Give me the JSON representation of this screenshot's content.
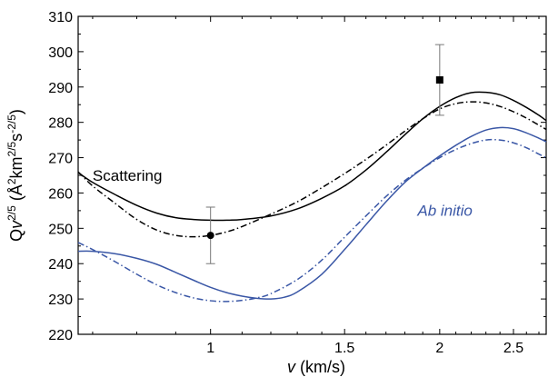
{
  "chart_data": {
    "type": "line",
    "title": "",
    "xlabel": "v (km/s)",
    "ylabel": "Qv^{2/5} (Å^2 km^{2/5} s^{-2/5})",
    "xlim": [
      0.67,
      2.76
    ],
    "ylim": [
      220,
      310
    ],
    "x_scale": "log",
    "grid": false,
    "legend": "none",
    "x_ticks": [
      {
        "value": 1,
        "label": "1"
      },
      {
        "value": 1.5,
        "label": "1.5"
      },
      {
        "value": 2,
        "label": "2"
      },
      {
        "value": 2.5,
        "label": "2.5"
      }
    ],
    "y_ticks": [
      220,
      230,
      240,
      250,
      260,
      270,
      280,
      290,
      300,
      310
    ],
    "annotations": [
      {
        "text": "Scattering",
        "x": 0.7,
        "y": 263.5,
        "color": "#000000",
        "italic": false
      },
      {
        "text": "Ab initio",
        "x": 1.87,
        "y": 253.5,
        "color": "#3a57a6",
        "italic": true
      }
    ],
    "series": [
      {
        "color": "#000000",
        "style": "solid",
        "x": [
          0.67,
          0.7,
          0.75,
          0.8,
          0.85,
          0.9,
          0.95,
          1.0,
          1.05,
          1.1,
          1.2,
          1.3,
          1.4,
          1.5,
          1.6,
          1.7,
          1.8,
          1.9,
          2.0,
          2.1,
          2.2,
          2.3,
          2.4,
          2.5,
          2.6,
          2.7,
          2.76
        ],
        "y": [
          265.8,
          263.0,
          259.5,
          256.5,
          254.3,
          253.0,
          252.5,
          252.3,
          252.3,
          252.5,
          253.5,
          255.5,
          258.5,
          262.0,
          266.5,
          271.5,
          276.5,
          281.0,
          284.5,
          287.0,
          288.4,
          288.5,
          287.8,
          286.2,
          284.2,
          282.0,
          280.5
        ]
      },
      {
        "color": "#000000",
        "style": "dashdot",
        "x": [
          0.67,
          0.7,
          0.75,
          0.8,
          0.85,
          0.9,
          0.95,
          1.0,
          1.05,
          1.1,
          1.2,
          1.3,
          1.4,
          1.5,
          1.6,
          1.7,
          1.8,
          1.9,
          2.0,
          2.1,
          2.2,
          2.3,
          2.4,
          2.5,
          2.6,
          2.7,
          2.76
        ],
        "y": [
          266.0,
          262.0,
          257.0,
          252.5,
          249.5,
          248.0,
          247.6,
          248.0,
          249.0,
          250.5,
          254.0,
          257.5,
          261.5,
          265.5,
          269.5,
          273.5,
          277.5,
          281.0,
          283.8,
          285.3,
          285.8,
          285.5,
          284.5,
          283.0,
          281.2,
          279.2,
          278.0
        ]
      },
      {
        "color": "#3a57a6",
        "style": "solid",
        "x": [
          0.67,
          0.7,
          0.75,
          0.8,
          0.85,
          0.9,
          0.95,
          1.0,
          1.05,
          1.1,
          1.15,
          1.2,
          1.25,
          1.3,
          1.4,
          1.5,
          1.6,
          1.7,
          1.8,
          1.9,
          2.0,
          2.1,
          2.2,
          2.3,
          2.4,
          2.5,
          2.6,
          2.7,
          2.76
        ],
        "y": [
          243.5,
          243.5,
          242.8,
          241.5,
          239.8,
          237.5,
          235.3,
          233.3,
          231.8,
          230.8,
          230.2,
          230.0,
          230.5,
          232.0,
          237.0,
          244.0,
          251.0,
          257.5,
          263.0,
          267.0,
          270.5,
          273.5,
          276.0,
          277.8,
          278.5,
          278.2,
          277.0,
          275.5,
          274.5
        ]
      },
      {
        "color": "#3a57a6",
        "style": "dashdot",
        "x": [
          0.67,
          0.7,
          0.75,
          0.8,
          0.85,
          0.9,
          0.95,
          1.0,
          1.05,
          1.1,
          1.15,
          1.2,
          1.3,
          1.4,
          1.5,
          1.6,
          1.7,
          1.8,
          1.9,
          2.0,
          2.1,
          2.2,
          2.3,
          2.4,
          2.5,
          2.6,
          2.7,
          2.76
        ],
        "y": [
          246.0,
          244.0,
          240.5,
          237.0,
          234.0,
          231.8,
          230.3,
          229.5,
          229.3,
          229.6,
          230.3,
          231.5,
          235.5,
          241.0,
          247.5,
          253.5,
          259.0,
          263.5,
          267.0,
          270.0,
          272.3,
          274.0,
          275.0,
          275.0,
          274.2,
          272.8,
          271.0,
          270.0
        ]
      }
    ],
    "points": [
      {
        "x": 1.0,
        "y": 248.0,
        "err_low": 240.0,
        "err_high": 256.0,
        "marker": "circle",
        "color": "#000000"
      },
      {
        "x": 2.0,
        "y": 292.0,
        "err_low": 282.0,
        "err_high": 302.0,
        "marker": "square",
        "color": "#000000"
      }
    ]
  }
}
